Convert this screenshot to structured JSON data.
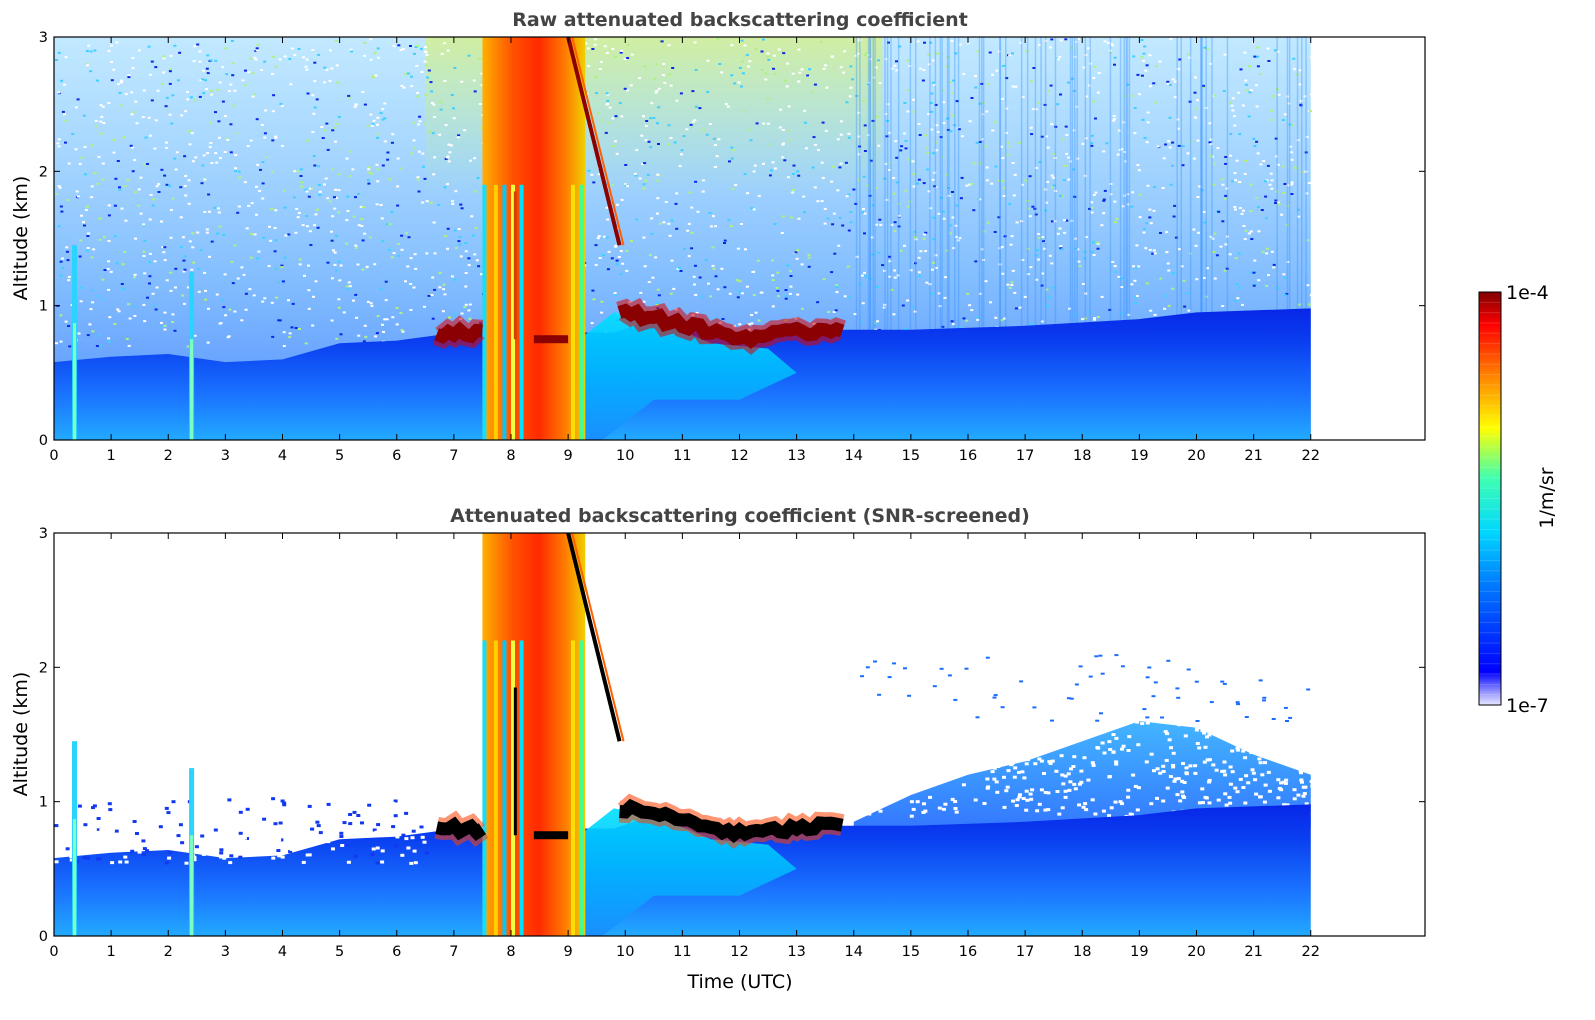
{
  "chart_data": [
    {
      "type": "heatmap",
      "title": "Raw attenuated backscattering coefficient",
      "xlabel": "",
      "ylabel": "Altitude (km)",
      "xlim": [
        0,
        24
      ],
      "ylim": [
        0,
        3
      ],
      "x_ticks": [
        "0",
        "1",
        "2",
        "3",
        "4",
        "5",
        "6",
        "7",
        "8",
        "9",
        "10",
        "11",
        "12",
        "13",
        "14",
        "15",
        "16",
        "17",
        "18",
        "19",
        "20",
        "21",
        "22"
      ],
      "y_ticks": [
        "0",
        "1",
        "2",
        "3"
      ],
      "data_extent_hours": [
        0,
        22
      ],
      "screened": false,
      "features": [
        {
          "name": "boundary layer aerosol",
          "x_range": [
            0,
            22
          ],
          "top_km": 0.8
        },
        {
          "name": "cloud base layer",
          "x_range": [
            6.7,
            13.8
          ],
          "altitude_km": 0.8
        },
        {
          "name": "precipitation / thick cloud",
          "x_range": [
            7.5,
            9.3
          ],
          "altitude_km": [
            0,
            3
          ]
        },
        {
          "name": "descending cloud streak",
          "x_range": [
            9.0,
            9.9
          ],
          "altitude_km": [
            3.0,
            1.45
          ]
        }
      ]
    },
    {
      "type": "heatmap",
      "title": "Attenuated backscattering coefficient (SNR-screened)",
      "xlabel": "Time (UTC)",
      "ylabel": "Altitude (km)",
      "xlim": [
        0,
        24
      ],
      "ylim": [
        0,
        3
      ],
      "x_ticks": [
        "0",
        "1",
        "2",
        "3",
        "4",
        "5",
        "6",
        "7",
        "8",
        "9",
        "10",
        "11",
        "12",
        "13",
        "14",
        "15",
        "16",
        "17",
        "18",
        "19",
        "20",
        "21",
        "22"
      ],
      "y_ticks": [
        "0",
        "1",
        "2",
        "3"
      ],
      "data_extent_hours": [
        0,
        22
      ],
      "screened": true,
      "features": [
        {
          "name": "boundary layer aerosol",
          "x_range": [
            0,
            22
          ],
          "top_km": 0.8
        },
        {
          "name": "cloud base layer",
          "x_range": [
            6.7,
            13.8
          ],
          "altitude_km": 0.8
        },
        {
          "name": "precipitation / thick cloud",
          "x_range": [
            7.5,
            9.3
          ],
          "altitude_km": [
            0,
            3
          ]
        },
        {
          "name": "descending cloud streak",
          "x_range": [
            9.0,
            9.9
          ],
          "altitude_km": [
            3.0,
            1.45
          ]
        }
      ]
    }
  ],
  "colorbar": {
    "label": "1/m/sr",
    "max_label": "1e-4",
    "min_label": "1e-7",
    "colormap": "jet",
    "scale": "log"
  }
}
